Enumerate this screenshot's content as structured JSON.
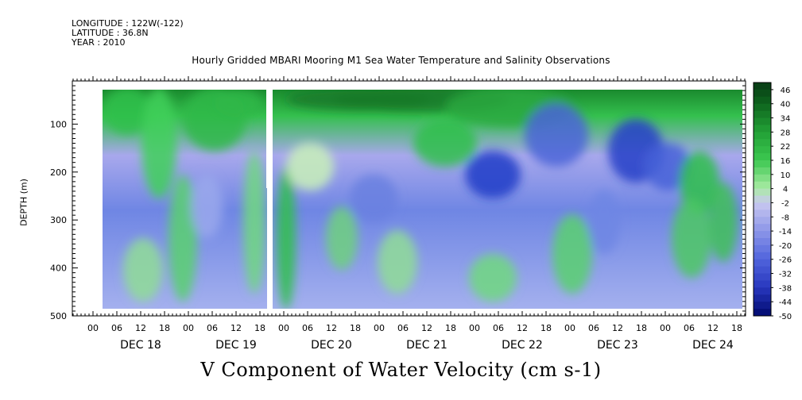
{
  "header": {
    "longitude": "LONGITUDE : 122W(-122)",
    "latitude": "LATITUDE : 36.8N",
    "year": "YEAR : 2010"
  },
  "chart_data": {
    "type": "heatmap",
    "title": "Hourly Gridded MBARI Mooring M1 Sea Water Temperature and Salinity Observations",
    "xlabel": "V Component of Water Velocity (cm s-1)",
    "ylabel": "DEPTH (m)",
    "y_ticks": [
      100,
      200,
      300,
      400,
      500
    ],
    "ylim": [
      500,
      10
    ],
    "day_labels": [
      "DEC 18",
      "DEC 19",
      "DEC 20",
      "DEC 21",
      "DEC 22",
      "DEC 23",
      "DEC 24"
    ],
    "hour_labels": [
      "00",
      "06",
      "12",
      "18",
      "00",
      "06",
      "12",
      "18",
      "00",
      "06",
      "12",
      "18",
      "00",
      "06",
      "12",
      "18",
      "00",
      "06",
      "12",
      "18",
      "00",
      "06",
      "12",
      "18",
      "00",
      "06",
      "12",
      "18"
    ],
    "colorbar_labels": [
      "46",
      "40",
      "34",
      "28",
      "22",
      "16",
      "10",
      "4",
      "-2",
      "-8",
      "-14",
      "-20",
      "-26",
      "-32",
      "-38",
      "-44",
      "-50"
    ],
    "colorbar_range": [
      -50,
      49
    ],
    "colors": {
      "strong_positive": "#0a3a14",
      "positive": "#2fc04a",
      "near_zero": "#c8f0b8",
      "negative": "#8a98e8",
      "strong_negative": "#000c6e"
    }
  }
}
